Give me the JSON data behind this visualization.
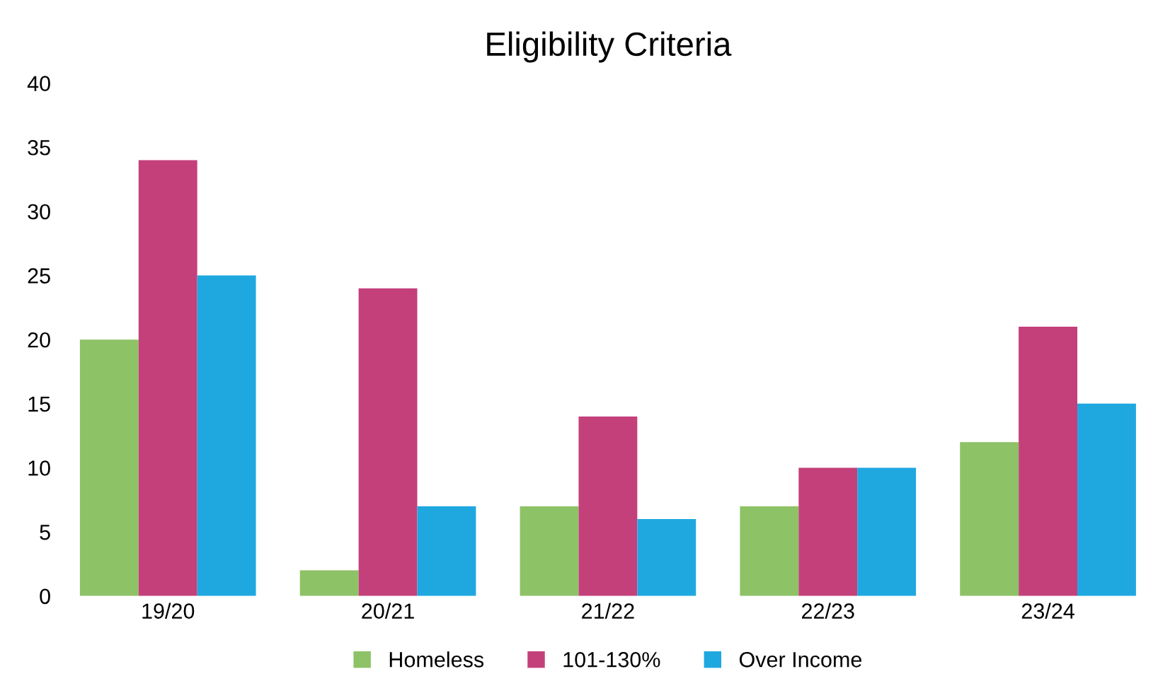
{
  "chart_data": {
    "type": "bar",
    "title": "Eligibility Criteria",
    "categories": [
      "19/20",
      "20/21",
      "21/22",
      "22/23",
      "23/24"
    ],
    "series": [
      {
        "name": "Homeless",
        "color": "#8dc266",
        "values": [
          20,
          2,
          7,
          7,
          12
        ]
      },
      {
        "name": "101-130%",
        "color": "#c4407b",
        "values": [
          34,
          24,
          14,
          10,
          21
        ]
      },
      {
        "name": "Over Income",
        "color": "#1fa8e0",
        "values": [
          25,
          7,
          6,
          10,
          15
        ]
      }
    ],
    "ylim": [
      0,
      40
    ],
    "yticks": [
      0,
      5,
      10,
      15,
      20,
      25,
      30,
      35,
      40
    ],
    "grid": false,
    "legend": "bottom"
  }
}
